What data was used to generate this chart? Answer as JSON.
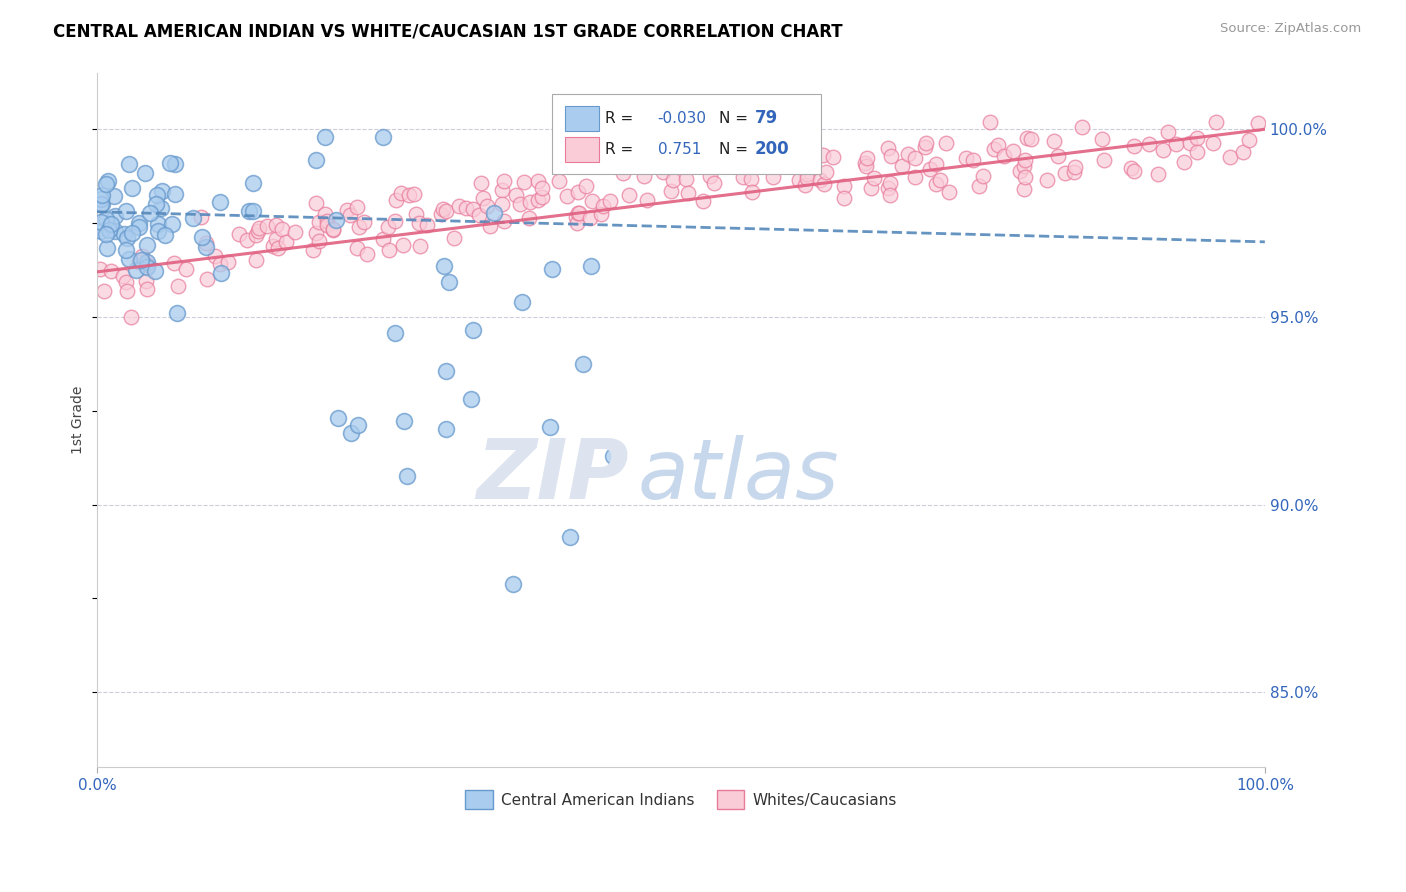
{
  "title": "CENTRAL AMERICAN INDIAN VS WHITE/CAUCASIAN 1ST GRADE CORRELATION CHART",
  "source": "Source: ZipAtlas.com",
  "ylabel": "1st Grade",
  "R_blue": -0.03,
  "N_blue": 79,
  "R_pink": 0.751,
  "N_pink": 200,
  "xlim": [
    0,
    100
  ],
  "ylim": [
    83.0,
    101.5
  ],
  "ytick_positions": [
    85.0,
    90.0,
    95.0,
    100.0
  ],
  "ytick_labels": [
    "85.0%",
    "90.0%",
    "95.0%",
    "100.0%"
  ],
  "blue_color_face": "#aaccee",
  "blue_color_edge": "#6699cc",
  "pink_color_face": "#f9ccd8",
  "pink_color_edge": "#e87a9a",
  "blue_line_color": "#5588bb",
  "pink_line_color": "#e06080",
  "grid_color": "#ccccdd",
  "text_color": "#3366bb",
  "watermark_zip_color": "#dde4f0",
  "watermark_atlas_color": "#c8d8ec"
}
